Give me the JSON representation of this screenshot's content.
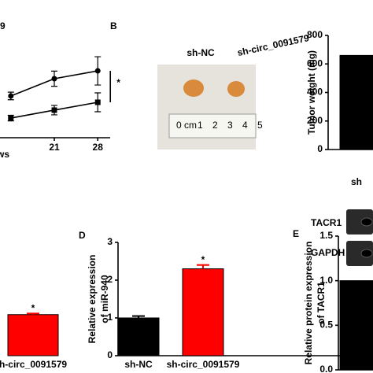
{
  "panels": [
    "B",
    "D",
    "E"
  ],
  "photo": {
    "labels": [
      "sh-NC",
      "sh-circ_0091579"
    ],
    "ruler": [
      "0 cm",
      "1",
      "2",
      "3",
      "4",
      "5"
    ]
  },
  "blot": {
    "labels": [
      "TACR1",
      "GAPDH"
    ]
  },
  "chart_data": [
    {
      "type": "line",
      "title": "9",
      "xlabel": "ws",
      "annotations": [
        "*"
      ],
      "x": [
        14,
        21,
        28
      ],
      "xlim": [
        12,
        30
      ],
      "xticks": [
        21,
        28
      ],
      "ylim": [
        0,
        1000
      ],
      "series": [
        {
          "marker": "circle",
          "color": "#000000",
          "values": [
            442,
            625,
            708
          ],
          "errors": [
            40,
            80,
            150
          ]
        },
        {
          "marker": "square",
          "color": "#000000",
          "values": [
            208,
            292,
            375
          ],
          "errors": [
            30,
            50,
            100
          ]
        }
      ]
    },
    {
      "type": "bar",
      "ylabel": [
        "Tumor weight (mg)"
      ],
      "categories": [
        "sh"
      ],
      "values": [
        660
      ],
      "colors": [
        "#000000"
      ],
      "ylim": [
        0,
        800
      ],
      "yticks": [
        0,
        200,
        400,
        600,
        800
      ]
    },
    {
      "type": "bar",
      "categories": [
        "h-circ_0091579"
      ],
      "values": [
        1.1
      ],
      "errors": [
        0.03
      ],
      "colors": [
        "#ff0000"
      ],
      "ylim": [
        0,
        1.2
      ],
      "annotations": [
        "*"
      ]
    },
    {
      "type": "bar",
      "ylabel": [
        "Relative expression",
        "of miR-940"
      ],
      "categories": [
        "sh-NC",
        "sh-circ_0091579"
      ],
      "values": [
        1.0,
        2.3
      ],
      "errors": [
        0.05,
        0.1
      ],
      "colors": [
        "#000000",
        "#ff0000"
      ],
      "ylim": [
        0,
        3
      ],
      "yticks": [
        0,
        1,
        2,
        3
      ],
      "annotations": [
        "*"
      ]
    },
    {
      "type": "bar",
      "ylabel": [
        "Relative protein expression",
        "of TACR1"
      ],
      "values": [
        1.0
      ],
      "colors": [
        "#000000"
      ],
      "ylim": [
        0,
        1.5
      ],
      "yticks": [
        {
          "value": 0,
          "label": "0.0"
        },
        0.5,
        {
          "value": 1,
          "label": "1.0"
        },
        1.5
      ]
    }
  ]
}
